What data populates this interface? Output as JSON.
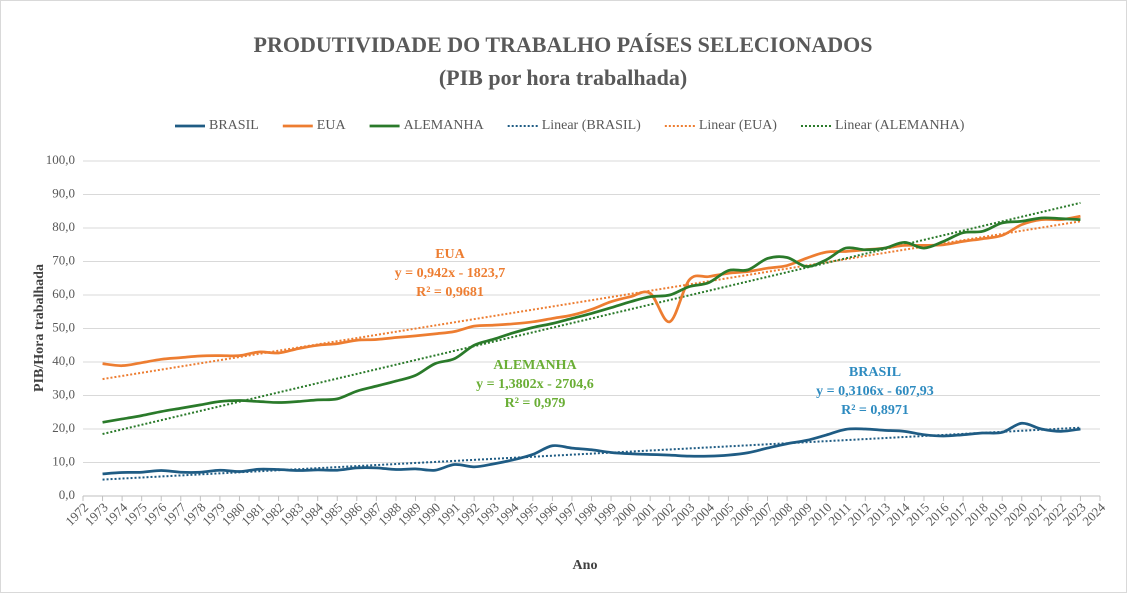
{
  "chart_data": {
    "type": "line",
    "title": "PRODUTIVIDADE  DO TRABALHO PAÍSES SELECIONADOS",
    "subtitle": "(PIB por hora trabalhada)",
    "x_label": "Ano",
    "y_label": "PIB/Hora trabalhada",
    "x": [
      1973,
      1974,
      1975,
      1976,
      1977,
      1978,
      1979,
      1980,
      1981,
      1982,
      1983,
      1984,
      1985,
      1986,
      1987,
      1988,
      1989,
      1990,
      1991,
      1992,
      1993,
      1994,
      1995,
      1996,
      1997,
      1998,
      1999,
      2000,
      2001,
      2002,
      2003,
      2004,
      2005,
      2006,
      2007,
      2008,
      2009,
      2010,
      2011,
      2012,
      2013,
      2014,
      2015,
      2016,
      2017,
      2018,
      2019,
      2020,
      2021,
      2022,
      2023
    ],
    "series": [
      {
        "name": "BRASIL",
        "color": "#1f5c84",
        "values": [
          6.6,
          7.0,
          7.1,
          7.6,
          7.1,
          7.1,
          7.7,
          7.3,
          8.0,
          7.9,
          7.6,
          7.8,
          7.7,
          8.4,
          8.4,
          7.9,
          8.1,
          7.7,
          9.4,
          8.7,
          9.6,
          10.8,
          12.4,
          15.0,
          14.3,
          13.8,
          13.0,
          12.6,
          12.4,
          12.2,
          11.9,
          11.9,
          12.2,
          12.9,
          14.3,
          15.6,
          16.6,
          18.2,
          19.9,
          20.0,
          19.6,
          19.3,
          18.3,
          17.9,
          18.3,
          18.8,
          19.0,
          21.7,
          20.0,
          19.3,
          20.0
        ]
      },
      {
        "name": "EUA",
        "color": "#ed7d31",
        "values": [
          39.5,
          38.9,
          39.8,
          40.8,
          41.3,
          41.8,
          41.9,
          41.9,
          43.0,
          42.7,
          44.0,
          45.0,
          45.5,
          46.5,
          46.7,
          47.3,
          47.8,
          48.4,
          49.1,
          50.7,
          51.0,
          51.4,
          52.0,
          53.0,
          54.0,
          55.7,
          58.0,
          59.5,
          60.5,
          52.0,
          64.5,
          65.5,
          66.5,
          67.0,
          68.0,
          68.8,
          71.0,
          72.8,
          73.0,
          73.5,
          74.0,
          74.8,
          74.8,
          75.0,
          76.0,
          76.8,
          77.8,
          81.0,
          82.5,
          82.5,
          83.5
        ]
      },
      {
        "name": "ALEMANHA",
        "color": "#2a7a2a",
        "values": [
          22.0,
          23.0,
          24.0,
          25.2,
          26.2,
          27.2,
          28.2,
          28.5,
          28.2,
          27.9,
          28.2,
          28.7,
          29.0,
          31.3,
          32.8,
          34.3,
          36.0,
          39.5,
          41.0,
          45.0,
          46.8,
          48.7,
          50.3,
          51.5,
          53.0,
          54.5,
          56.2,
          58.0,
          59.5,
          60.0,
          62.5,
          63.7,
          67.3,
          67.5,
          70.9,
          71.2,
          68.5,
          70.5,
          74.0,
          73.5,
          74.0,
          75.7,
          74.0,
          76.0,
          78.6,
          79.0,
          81.5,
          82.0,
          83.0,
          82.8,
          82.5
        ]
      },
      {
        "name": "Linear (BRASIL)",
        "color": "#1f5c84",
        "dashed": true,
        "x": [
          1973,
          2023
        ],
        "values": [
          4.9,
          20.4
        ]
      },
      {
        "name": "Linear (EUA)",
        "color": "#ed7d31",
        "dashed": true,
        "x": [
          1973,
          2023
        ],
        "values": [
          34.9,
          82.0
        ]
      },
      {
        "name": "Linear (ALEMANHA)",
        "color": "#2a7a2a",
        "dashed": true,
        "x": [
          1973,
          2023
        ],
        "values": [
          18.5,
          87.5
        ]
      }
    ],
    "annotations": [
      {
        "color": "#ed7d31",
        "lines": [
          "EUA",
          "y = 0,942x - 1823,7",
          "R² = 0,9681"
        ]
      },
      {
        "color": "#6aae35",
        "lines": [
          "ALEMANHA",
          "y = 1,3802x - 2704,6",
          "R² = 0,979"
        ]
      },
      {
        "color": "#2e8bc0",
        "lines": [
          "BRASIL",
          "y = 0,3106x - 607,93",
          "R² = 0,8971"
        ]
      }
    ],
    "xlim": [
      1972,
      2024
    ],
    "xticks": [
      1972,
      1973,
      1974,
      1975,
      1976,
      1977,
      1978,
      1979,
      1980,
      1981,
      1982,
      1983,
      1984,
      1985,
      1986,
      1987,
      1988,
      1989,
      1990,
      1991,
      1992,
      1993,
      1994,
      1995,
      1996,
      1997,
      1998,
      1999,
      2000,
      2001,
      2002,
      2003,
      2004,
      2005,
      2006,
      2007,
      2008,
      2009,
      2010,
      2011,
      2012,
      2013,
      2014,
      2015,
      2016,
      2017,
      2018,
      2019,
      2020,
      2021,
      2022,
      2023,
      2024
    ],
    "ylim": [
      0,
      100
    ],
    "yticks": [
      {
        "value": 0,
        "label": "0,0"
      },
      {
        "value": 10,
        "label": "10,0"
      },
      {
        "value": 20,
        "label": "20,0"
      },
      {
        "value": 30,
        "label": "30,0"
      },
      {
        "value": 40,
        "label": "40,0"
      },
      {
        "value": 50,
        "label": "50,0"
      },
      {
        "value": 60,
        "label": "60,0"
      },
      {
        "value": 70,
        "label": "70,0"
      },
      {
        "value": 80,
        "label": "80,0"
      },
      {
        "value": 90,
        "label": "90,0"
      },
      {
        "value": 100,
        "label": "100,0"
      }
    ],
    "legend": "top"
  }
}
